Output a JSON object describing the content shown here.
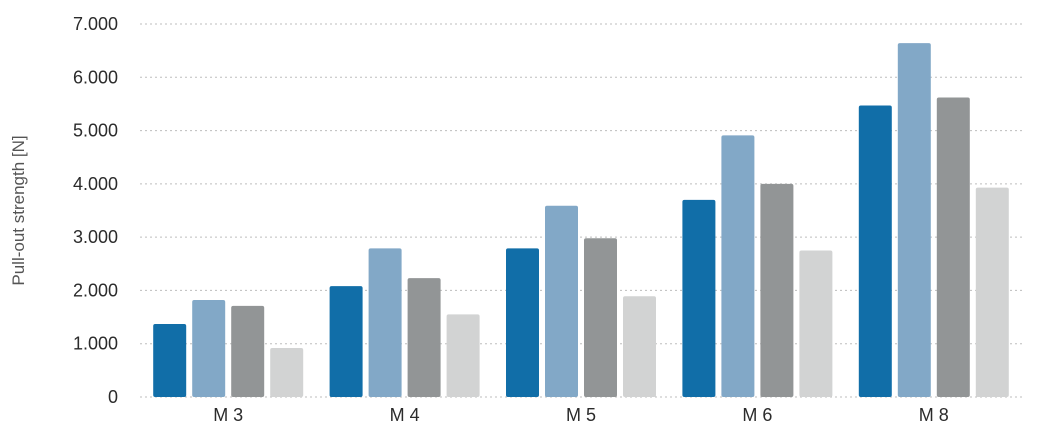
{
  "chart_data": {
    "type": "bar",
    "title": "",
    "xlabel": "",
    "ylabel": "Pull-out strength [N]",
    "ylim": [
      0,
      7000
    ],
    "y_ticks": [
      {
        "value": 0,
        "label": "0"
      },
      {
        "value": 1000,
        "label": "1.000"
      },
      {
        "value": 2000,
        "label": "2.000"
      },
      {
        "value": 3000,
        "label": "3.000"
      },
      {
        "value": 4000,
        "label": "4.000"
      },
      {
        "value": 5000,
        "label": "5.000"
      },
      {
        "value": 6000,
        "label": "6.000"
      },
      {
        "value": 7000,
        "label": "7.000"
      }
    ],
    "grid": true,
    "legend": "none",
    "categories": [
      "M 3",
      "M 4",
      "M 5",
      "M 6",
      "M 8"
    ],
    "series": [
      {
        "color": "#116ea8",
        "values": [
          1370,
          2080,
          2790,
          3700,
          5470
        ]
      },
      {
        "color": "#82a8c7",
        "values": [
          1820,
          2790,
          3590,
          4910,
          6640
        ]
      },
      {
        "color": "#929596",
        "values": [
          1710,
          2230,
          2980,
          4000,
          5620
        ]
      },
      {
        "color": "#d2d3d3",
        "values": [
          920,
          1550,
          1890,
          2750,
          3930
        ]
      }
    ]
  }
}
